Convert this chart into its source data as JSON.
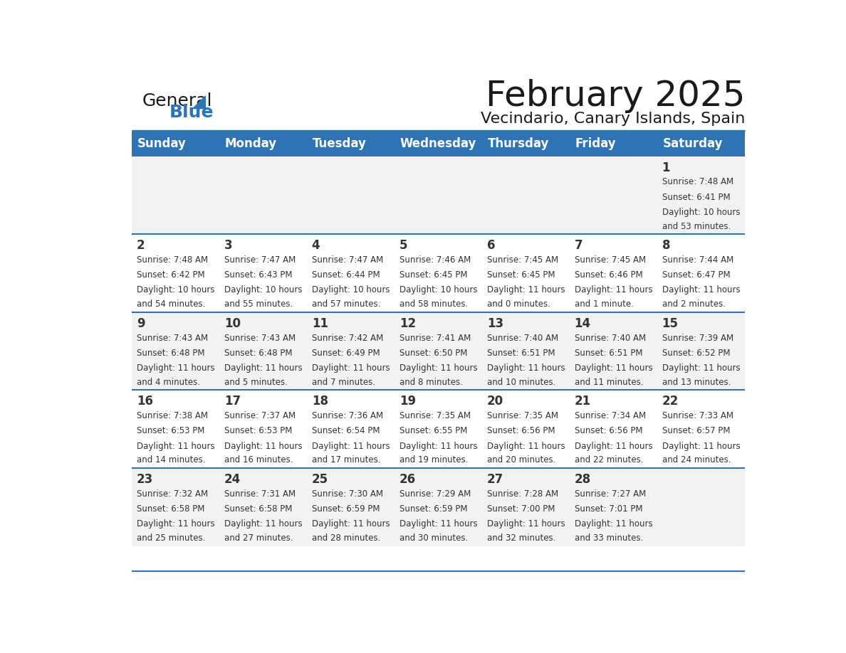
{
  "title": "February 2025",
  "subtitle": "Vecindario, Canary Islands, Spain",
  "header_bg": "#2E74B5",
  "header_text_color": "#FFFFFF",
  "day_names": [
    "Sunday",
    "Monday",
    "Tuesday",
    "Wednesday",
    "Thursday",
    "Friday",
    "Saturday"
  ],
  "row_bg_even": "#F2F2F2",
  "row_bg_odd": "#FFFFFF",
  "separator_color": "#2E74B5",
  "text_color": "#333333",
  "calendar_data": [
    [
      {
        "day": "",
        "sunrise": "",
        "sunset": "",
        "daylight": ""
      },
      {
        "day": "",
        "sunrise": "",
        "sunset": "",
        "daylight": ""
      },
      {
        "day": "",
        "sunrise": "",
        "sunset": "",
        "daylight": ""
      },
      {
        "day": "",
        "sunrise": "",
        "sunset": "",
        "daylight": ""
      },
      {
        "day": "",
        "sunrise": "",
        "sunset": "",
        "daylight": ""
      },
      {
        "day": "",
        "sunrise": "",
        "sunset": "",
        "daylight": ""
      },
      {
        "day": "1",
        "sunrise": "Sunrise: 7:48 AM",
        "sunset": "Sunset: 6:41 PM",
        "daylight": "Daylight: 10 hours\nand 53 minutes."
      }
    ],
    [
      {
        "day": "2",
        "sunrise": "Sunrise: 7:48 AM",
        "sunset": "Sunset: 6:42 PM",
        "daylight": "Daylight: 10 hours\nand 54 minutes."
      },
      {
        "day": "3",
        "sunrise": "Sunrise: 7:47 AM",
        "sunset": "Sunset: 6:43 PM",
        "daylight": "Daylight: 10 hours\nand 55 minutes."
      },
      {
        "day": "4",
        "sunrise": "Sunrise: 7:47 AM",
        "sunset": "Sunset: 6:44 PM",
        "daylight": "Daylight: 10 hours\nand 57 minutes."
      },
      {
        "day": "5",
        "sunrise": "Sunrise: 7:46 AM",
        "sunset": "Sunset: 6:45 PM",
        "daylight": "Daylight: 10 hours\nand 58 minutes."
      },
      {
        "day": "6",
        "sunrise": "Sunrise: 7:45 AM",
        "sunset": "Sunset: 6:45 PM",
        "daylight": "Daylight: 11 hours\nand 0 minutes."
      },
      {
        "day": "7",
        "sunrise": "Sunrise: 7:45 AM",
        "sunset": "Sunset: 6:46 PM",
        "daylight": "Daylight: 11 hours\nand 1 minute."
      },
      {
        "day": "8",
        "sunrise": "Sunrise: 7:44 AM",
        "sunset": "Sunset: 6:47 PM",
        "daylight": "Daylight: 11 hours\nand 2 minutes."
      }
    ],
    [
      {
        "day": "9",
        "sunrise": "Sunrise: 7:43 AM",
        "sunset": "Sunset: 6:48 PM",
        "daylight": "Daylight: 11 hours\nand 4 minutes."
      },
      {
        "day": "10",
        "sunrise": "Sunrise: 7:43 AM",
        "sunset": "Sunset: 6:48 PM",
        "daylight": "Daylight: 11 hours\nand 5 minutes."
      },
      {
        "day": "11",
        "sunrise": "Sunrise: 7:42 AM",
        "sunset": "Sunset: 6:49 PM",
        "daylight": "Daylight: 11 hours\nand 7 minutes."
      },
      {
        "day": "12",
        "sunrise": "Sunrise: 7:41 AM",
        "sunset": "Sunset: 6:50 PM",
        "daylight": "Daylight: 11 hours\nand 8 minutes."
      },
      {
        "day": "13",
        "sunrise": "Sunrise: 7:40 AM",
        "sunset": "Sunset: 6:51 PM",
        "daylight": "Daylight: 11 hours\nand 10 minutes."
      },
      {
        "day": "14",
        "sunrise": "Sunrise: 7:40 AM",
        "sunset": "Sunset: 6:51 PM",
        "daylight": "Daylight: 11 hours\nand 11 minutes."
      },
      {
        "day": "15",
        "sunrise": "Sunrise: 7:39 AM",
        "sunset": "Sunset: 6:52 PM",
        "daylight": "Daylight: 11 hours\nand 13 minutes."
      }
    ],
    [
      {
        "day": "16",
        "sunrise": "Sunrise: 7:38 AM",
        "sunset": "Sunset: 6:53 PM",
        "daylight": "Daylight: 11 hours\nand 14 minutes."
      },
      {
        "day": "17",
        "sunrise": "Sunrise: 7:37 AM",
        "sunset": "Sunset: 6:53 PM",
        "daylight": "Daylight: 11 hours\nand 16 minutes."
      },
      {
        "day": "18",
        "sunrise": "Sunrise: 7:36 AM",
        "sunset": "Sunset: 6:54 PM",
        "daylight": "Daylight: 11 hours\nand 17 minutes."
      },
      {
        "day": "19",
        "sunrise": "Sunrise: 7:35 AM",
        "sunset": "Sunset: 6:55 PM",
        "daylight": "Daylight: 11 hours\nand 19 minutes."
      },
      {
        "day": "20",
        "sunrise": "Sunrise: 7:35 AM",
        "sunset": "Sunset: 6:56 PM",
        "daylight": "Daylight: 11 hours\nand 20 minutes."
      },
      {
        "day": "21",
        "sunrise": "Sunrise: 7:34 AM",
        "sunset": "Sunset: 6:56 PM",
        "daylight": "Daylight: 11 hours\nand 22 minutes."
      },
      {
        "day": "22",
        "sunrise": "Sunrise: 7:33 AM",
        "sunset": "Sunset: 6:57 PM",
        "daylight": "Daylight: 11 hours\nand 24 minutes."
      }
    ],
    [
      {
        "day": "23",
        "sunrise": "Sunrise: 7:32 AM",
        "sunset": "Sunset: 6:58 PM",
        "daylight": "Daylight: 11 hours\nand 25 minutes."
      },
      {
        "day": "24",
        "sunrise": "Sunrise: 7:31 AM",
        "sunset": "Sunset: 6:58 PM",
        "daylight": "Daylight: 11 hours\nand 27 minutes."
      },
      {
        "day": "25",
        "sunrise": "Sunrise: 7:30 AM",
        "sunset": "Sunset: 6:59 PM",
        "daylight": "Daylight: 11 hours\nand 28 minutes."
      },
      {
        "day": "26",
        "sunrise": "Sunrise: 7:29 AM",
        "sunset": "Sunset: 6:59 PM",
        "daylight": "Daylight: 11 hours\nand 30 minutes."
      },
      {
        "day": "27",
        "sunrise": "Sunrise: 7:28 AM",
        "sunset": "Sunset: 7:00 PM",
        "daylight": "Daylight: 11 hours\nand 32 minutes."
      },
      {
        "day": "28",
        "sunrise": "Sunrise: 7:27 AM",
        "sunset": "Sunset: 7:01 PM",
        "daylight": "Daylight: 11 hours\nand 33 minutes."
      },
      {
        "day": "",
        "sunrise": "",
        "sunset": "",
        "daylight": ""
      }
    ]
  ],
  "logo_text_general": "General",
  "logo_text_blue": "Blue",
  "logo_color_general": "#1a1a1a",
  "logo_color_blue": "#2E74B5",
  "logo_triangle_color": "#2E74B5",
  "title_fontsize": 36,
  "subtitle_fontsize": 16,
  "header_fontsize": 12,
  "day_num_fontsize": 12,
  "cell_text_fontsize": 8.5
}
